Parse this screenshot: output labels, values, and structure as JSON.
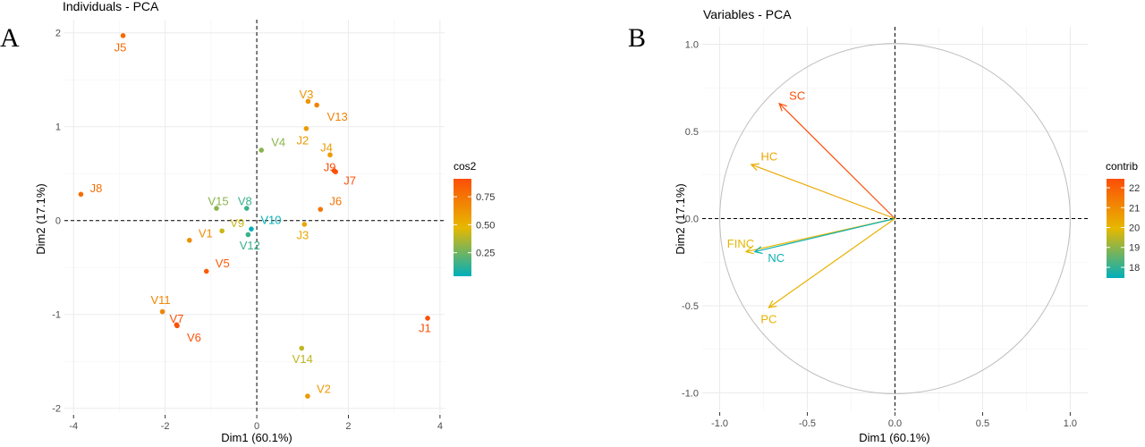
{
  "chart_data": [
    {
      "type": "scatter",
      "panel_label": "A",
      "title": "Individuals - PCA",
      "xlabel": "Dim1 (60.1%)",
      "ylabel": "Dim2 (17.1%)",
      "xlim": [
        -4.2,
        4.1
      ],
      "ylim": [
        -2.05,
        2.14
      ],
      "xticks": [
        "-4",
        "-2",
        "0",
        "2",
        "4"
      ],
      "yticks": [
        "-2",
        "-1",
        "0",
        "1",
        "2"
      ],
      "grid": true,
      "reference_lines": "dashed at x=0 and y=0",
      "color_by": "cos2",
      "legend": {
        "title": "cos2",
        "position": "right",
        "ticks": [
          "0.25",
          "0.50",
          "0.75"
        ],
        "range": [
          0.04,
          0.91
        ],
        "colors": [
          "#00AFBB",
          "#E7B800",
          "#FC4E07"
        ]
      },
      "points": [
        {
          "label": "J5",
          "x": -2.92,
          "y": 1.97,
          "cos2": 0.8
        },
        {
          "label": "J8",
          "x": -3.84,
          "y": 0.28,
          "cos2": 0.78
        },
        {
          "label": "V3",
          "x": 1.12,
          "y": 1.27,
          "cos2": 0.62
        },
        {
          "label": "V13",
          "x": 1.31,
          "y": 1.23,
          "cos2": 0.7
        },
        {
          "label": "J2",
          "x": 1.08,
          "y": 0.98,
          "cos2": 0.6
        },
        {
          "label": "V4",
          "x": 0.1,
          "y": 0.75,
          "cos2": 0.3
        },
        {
          "label": "J4",
          "x": 1.6,
          "y": 0.7,
          "cos2": 0.6
        },
        {
          "label": "J9",
          "x": 1.69,
          "y": 0.53,
          "cos2": 0.9
        },
        {
          "label": "J7",
          "x": 1.72,
          "y": 0.52,
          "cos2": 0.9
        },
        {
          "label": "J6",
          "x": 1.39,
          "y": 0.12,
          "cos2": 0.75
        },
        {
          "label": "V15",
          "x": -0.88,
          "y": 0.13,
          "cos2": 0.3
        },
        {
          "label": "V8",
          "x": -0.22,
          "y": 0.13,
          "cos2": 0.15
        },
        {
          "label": "J3",
          "x": 1.04,
          "y": -0.04,
          "cos2": 0.55
        },
        {
          "label": "V10",
          "x": -0.12,
          "y": -0.09,
          "cos2": 0.05
        },
        {
          "label": "V12",
          "x": -0.19,
          "y": -0.15,
          "cos2": 0.15
        },
        {
          "label": "V9",
          "x": -0.76,
          "y": -0.11,
          "cos2": 0.42
        },
        {
          "label": "V1",
          "x": -1.47,
          "y": -0.21,
          "cos2": 0.65
        },
        {
          "label": "V5",
          "x": -1.1,
          "y": -0.54,
          "cos2": 0.85
        },
        {
          "label": "V11",
          "x": -2.06,
          "y": -0.97,
          "cos2": 0.68
        },
        {
          "label": "V7",
          "x": -1.75,
          "y": -1.11,
          "cos2": 0.9
        },
        {
          "label": "V6",
          "x": -1.74,
          "y": -1.12,
          "cos2": 0.9
        },
        {
          "label": "J1",
          "x": 3.73,
          "y": -1.04,
          "cos2": 0.9
        },
        {
          "label": "V14",
          "x": 0.98,
          "y": -1.36,
          "cos2": 0.4
        },
        {
          "label": "V2",
          "x": 1.11,
          "y": -1.87,
          "cos2": 0.6
        }
      ]
    },
    {
      "type": "vector",
      "panel_label": "B",
      "title": "Variables - PCA",
      "xlabel": "Dim1 (60.1%)",
      "ylabel": "Dim2 (17.1%)",
      "xlim": [
        -1.1,
        1.1
      ],
      "ylim": [
        -1.1,
        1.1
      ],
      "xticks": [
        "-1.0",
        "-0.5",
        "0.0",
        "0.5",
        "1.0"
      ],
      "yticks": [
        "-1.0",
        "-0.5",
        "0.0",
        "0.5",
        "1.0"
      ],
      "grid": true,
      "unit_circle": true,
      "reference_lines": "dashed at x=0 and y=0",
      "color_by": "contrib",
      "legend": {
        "title": "contrib",
        "position": "right",
        "ticks": [
          "18",
          "19",
          "20",
          "21",
          "22"
        ],
        "range": [
          17.46,
          22.45
        ],
        "colors": [
          "#00AFBB",
          "#E7B800",
          "#FC4E07"
        ]
      },
      "vectors": [
        {
          "label": "SC",
          "x": -0.66,
          "y": 0.66,
          "contrib": 22.5
        },
        {
          "label": "HC",
          "x": -0.82,
          "y": 0.31,
          "contrib": 20.3
        },
        {
          "label": "FINC",
          "x": -0.85,
          "y": -0.19,
          "contrib": 20.0
        },
        {
          "label": "NC",
          "x": -0.8,
          "y": -0.19,
          "contrib": 17.6
        },
        {
          "label": "PC",
          "x": -0.72,
          "y": -0.51,
          "contrib": 20.1
        }
      ]
    }
  ]
}
